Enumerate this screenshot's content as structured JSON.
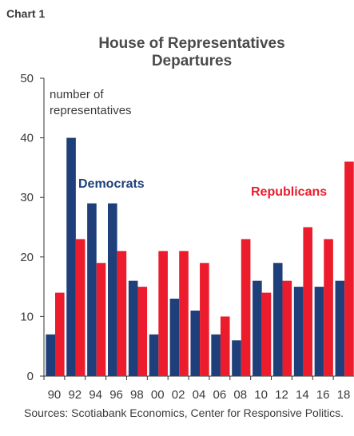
{
  "chart_label": "Chart 1",
  "chart_data": {
    "type": "bar",
    "title_lines": [
      "House of Representatives",
      "Departures"
    ],
    "ylabel_lines": [
      "number of",
      "representatives"
    ],
    "xlabel": "",
    "ylim": [
      0,
      50
    ],
    "yticks": [
      0,
      10,
      20,
      30,
      40,
      50
    ],
    "categories": [
      "90",
      "92",
      "94",
      "96",
      "98",
      "00",
      "02",
      "04",
      "06",
      "08",
      "10",
      "12",
      "14",
      "16",
      "18"
    ],
    "series": [
      {
        "name": "Democrats",
        "color": "#1f3f7a",
        "values": [
          7,
          40,
          29,
          29,
          16,
          7,
          13,
          11,
          7,
          6,
          16,
          19,
          15,
          15,
          16
        ]
      },
      {
        "name": "Republicans",
        "color": "#ec1c2d",
        "values": [
          14,
          23,
          19,
          21,
          15,
          21,
          21,
          19,
          10,
          23,
          14,
          16,
          25,
          23,
          36
        ]
      }
    ],
    "legend": "inline-labels",
    "grid": false
  },
  "sources": "Sources: Scotiabank Economics, Center for Responsive Politics."
}
